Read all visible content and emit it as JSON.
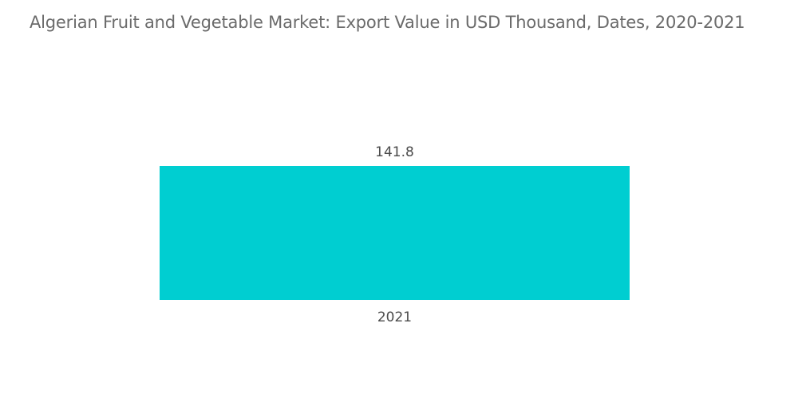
{
  "chart_data": {
    "type": "bar",
    "title": "Algerian Fruit and Vegetable Market: Export Value in USD Thousand, Dates, 2020-2021",
    "categories": [
      "2021"
    ],
    "values": [
      141.8
    ],
    "value_labels": [
      "141.8"
    ],
    "xlabel": "",
    "ylabel": "",
    "ylim": [
      0,
      141.8
    ],
    "grid": false,
    "legend": "none",
    "colors": {
      "bar": "#00ced1"
    }
  }
}
